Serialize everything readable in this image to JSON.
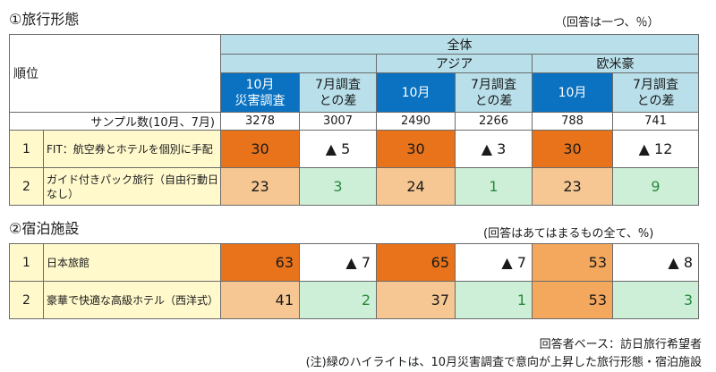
{
  "section1": {
    "title": "①旅行形態",
    "note": "（回答は一つ、％）",
    "header": {
      "rank": "順位",
      "all": "全体",
      "asia": "アジア",
      "west": "欧米豪",
      "col_oct": "10月",
      "col_oct_disaster": "10月\n災害調査",
      "col_diff": "7月調査\nとの差"
    },
    "sample_label": "サンプル数(10月、7月)",
    "samples": [
      "3278",
      "3007",
      "2490",
      "2266",
      "788",
      "741"
    ],
    "rows": [
      {
        "rank": "1",
        "label": "FIT：航空券とホテルを個別に手配",
        "values": [
          "30",
          "▲ 5",
          "30",
          "▲ 3",
          "30",
          "▲ 12"
        ]
      },
      {
        "rank": "2",
        "label": "ガイド付きパック旅行（自由行動日なし）",
        "values": [
          "23",
          "3",
          "24",
          "1",
          "23",
          "9"
        ]
      }
    ]
  },
  "section2": {
    "title": "②宿泊施設",
    "note": "(回答はあてはまるもの全て、%)",
    "rows": [
      {
        "rank": "1",
        "label": "日本旅館",
        "values": [
          "63",
          "▲ 7",
          "65",
          "▲ 7",
          "53",
          "▲ 8"
        ]
      },
      {
        "rank": "2",
        "label": "豪華で快適な高級ホテル（西洋式）",
        "values": [
          "41",
          "2",
          "37",
          "1",
          "53",
          "3"
        ]
      }
    ]
  },
  "footer": {
    "base": "回答者ベース：訪日旅行希望者",
    "note": "(注)緑のハイライトは、10月災害調査で意向が上昇した旅行形態・宿泊施設"
  },
  "colors": {
    "header_blue": "#0a72c0",
    "header_light": "#b9e0ea",
    "label_yellow": "#fff9cc",
    "orange_dark": "#e8731a",
    "orange_mid": "#f3a85e",
    "orange_light": "#f6c792",
    "green_highlight": "#cdefd7"
  }
}
